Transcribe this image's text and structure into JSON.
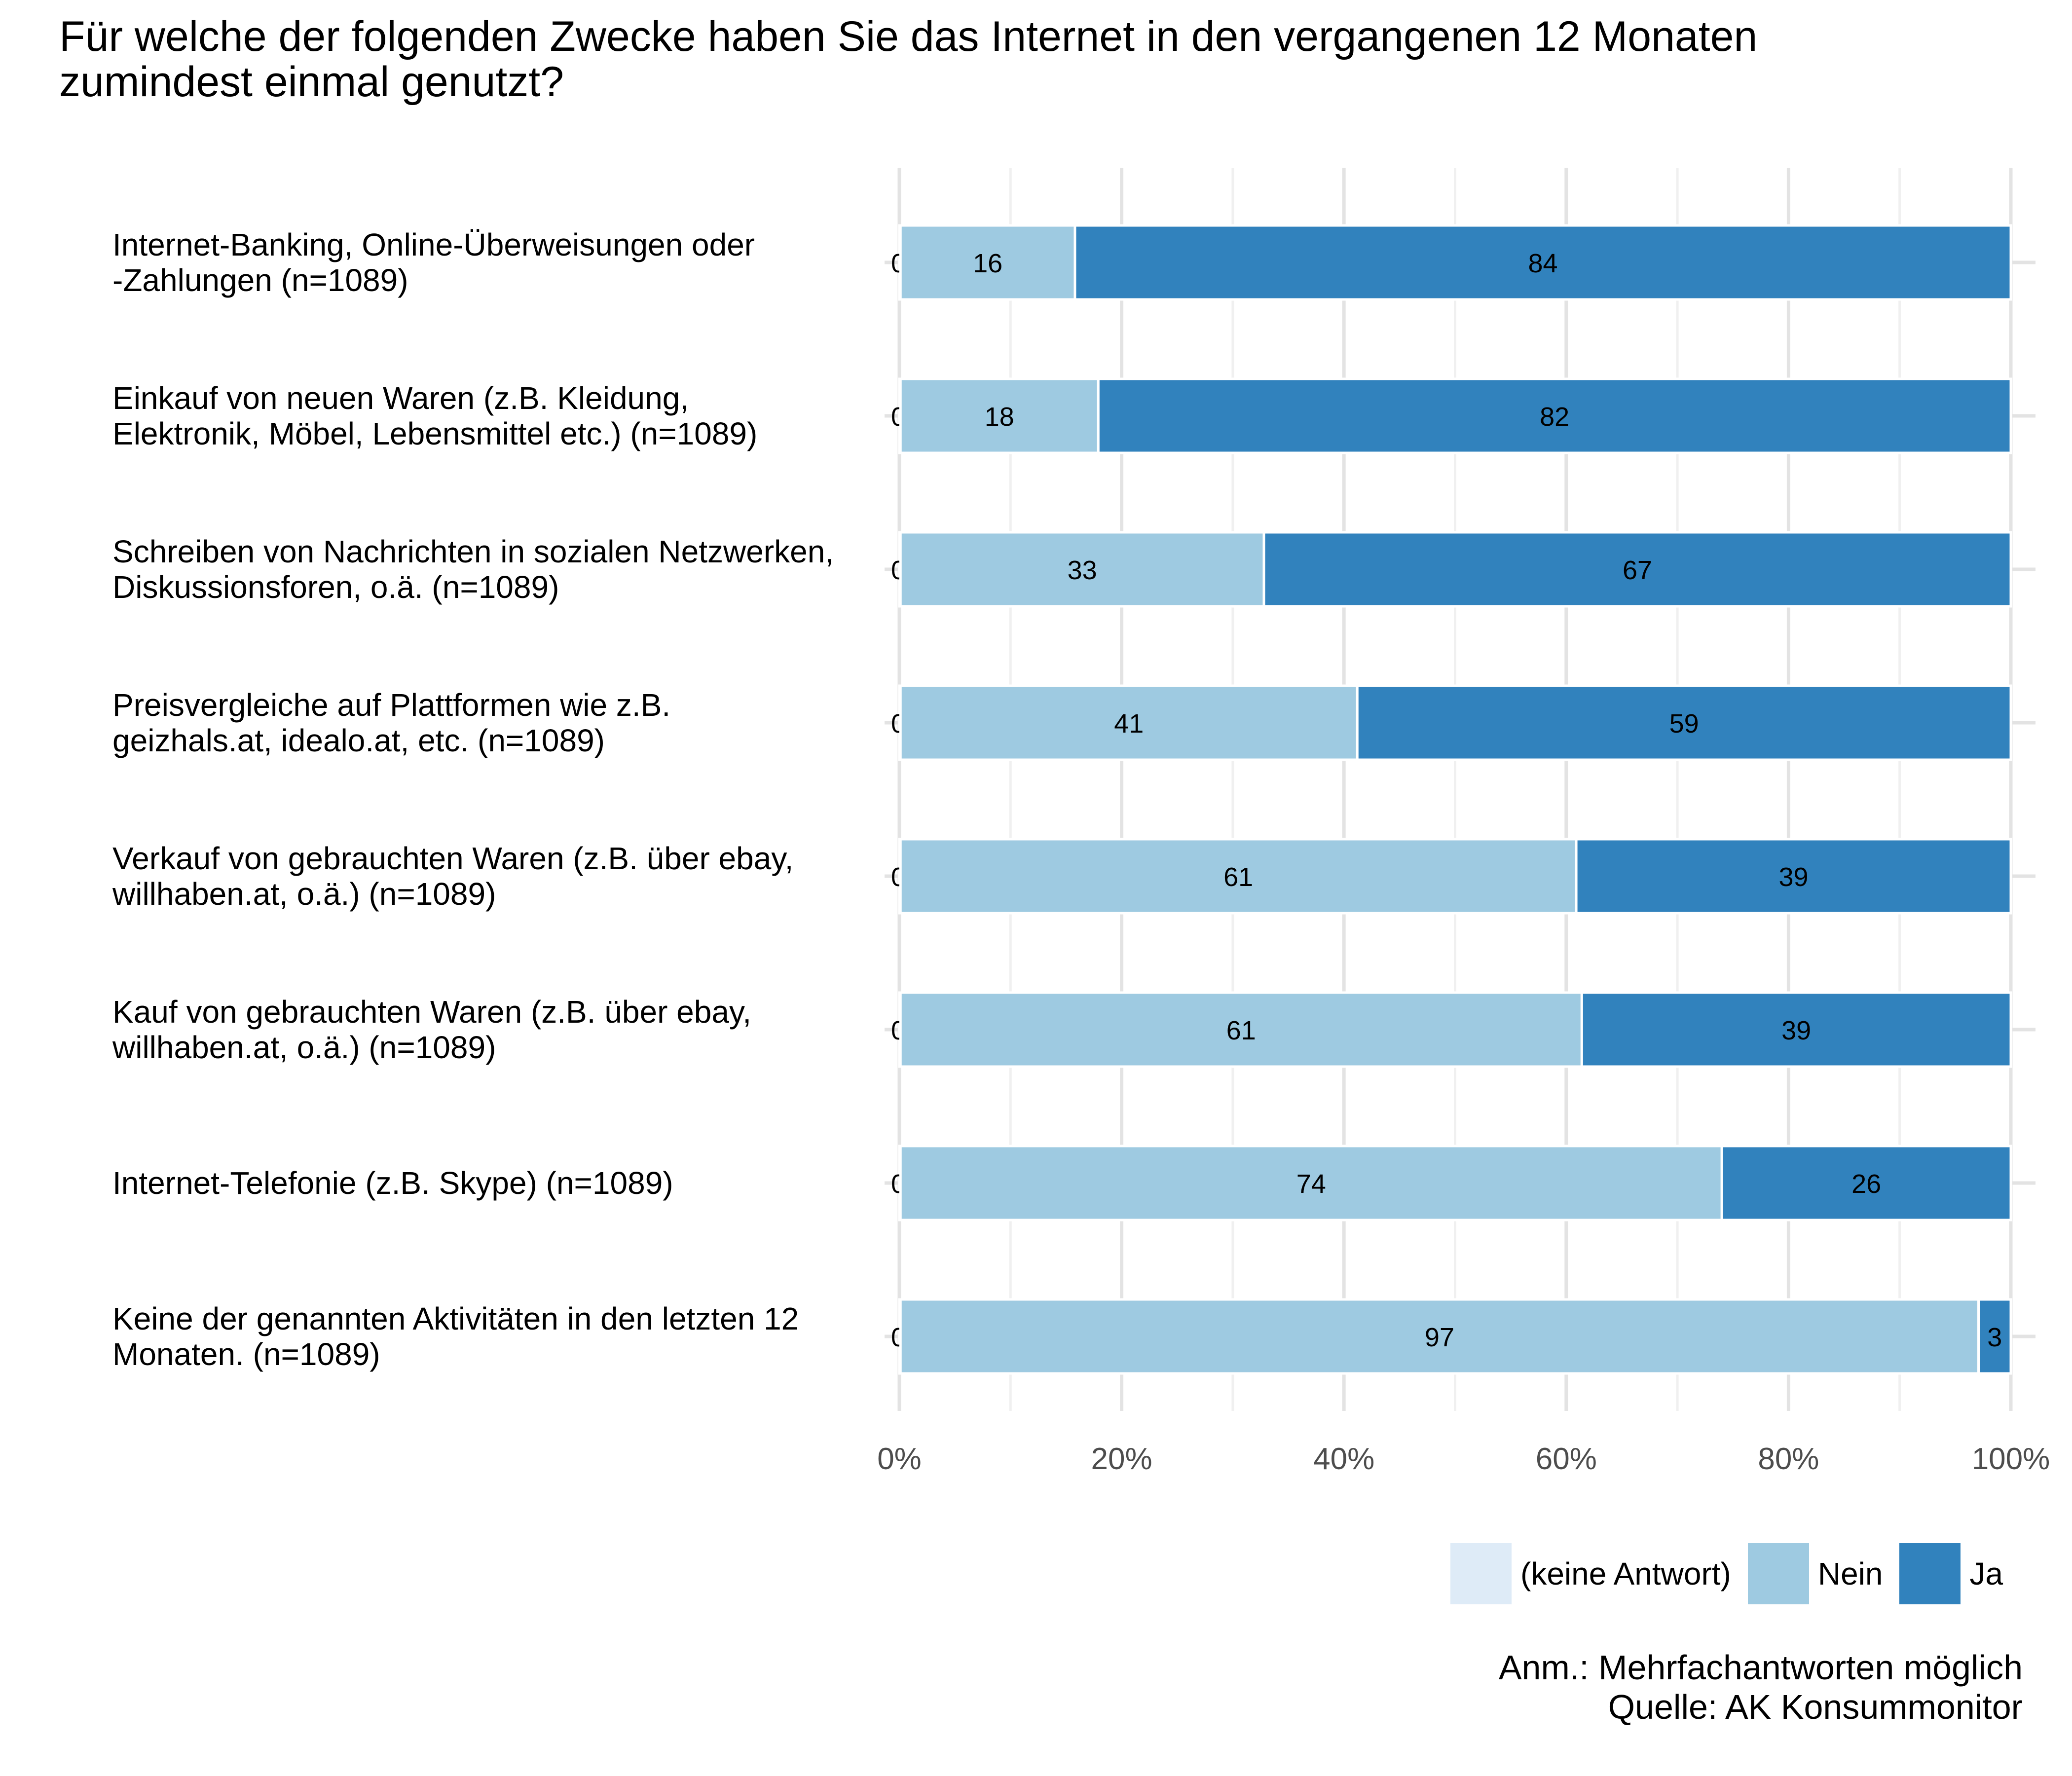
{
  "title_lines": [
    "Für welche der folgenden Zwecke haben Sie das Internet in den vergangenen 12 Monaten",
    "zumindest einmal genutzt?"
  ],
  "chart_data": {
    "type": "bar",
    "orientation": "horizontal",
    "stacked": true,
    "categories": [
      [
        "Internet-Banking, Online-Überweisungen oder",
        "-Zahlungen (n=1089)"
      ],
      [
        "Einkauf von neuen Waren (z.B. Kleidung,",
        "Elektronik, Möbel, Lebensmittel etc.) (n=1089)"
      ],
      [
        "Schreiben von Nachrichten in sozialen Netzwerken,",
        "Diskussionsforen, o.ä. (n=1089)"
      ],
      [
        "Preisvergleiche auf Plattformen wie z.B.",
        "geizhals.at, idealo.at, etc. (n=1089)"
      ],
      [
        "Verkauf von gebrauchten Waren (z.B. über ebay,",
        "willhaben.at, o.ä.)  (n=1089)"
      ],
      [
        "Kauf von gebrauchten Waren (z.B. über ebay,",
        "willhaben.at, o.ä.) (n=1089)"
      ],
      [
        "Internet-Telefonie (z.B. Skype) (n=1089)"
      ],
      [
        "Keine der genannten Aktivitäten in den letzten 12",
        "Monaten. (n=1089)"
      ]
    ],
    "series": [
      {
        "name": "(keine Antwort)",
        "color": "#deebf7",
        "values": [
          0,
          0,
          0,
          0,
          0,
          0,
          0,
          0
        ],
        "exact": [
          0.1,
          0.1,
          0.1,
          0.1,
          0.1,
          0.1,
          0.1,
          0.1
        ],
        "labels": [
          "0",
          "0",
          "0",
          "0",
          "0",
          "0",
          "0",
          "0"
        ]
      },
      {
        "name": "Nein",
        "color": "#9ecae1",
        "values": [
          16,
          18,
          33,
          41,
          61,
          61,
          74,
          97
        ],
        "exact": [
          15.7,
          17.8,
          32.7,
          41.1,
          60.8,
          61.3,
          73.9,
          97.0
        ],
        "labels": [
          "16",
          "18",
          "33",
          "41",
          "61",
          "61",
          "74",
          "97"
        ]
      },
      {
        "name": "Ja",
        "color": "#3182bd",
        "values": [
          84,
          82,
          67,
          59,
          39,
          39,
          26,
          3
        ],
        "exact": [
          84.2,
          82.1,
          67.2,
          58.8,
          39.1,
          38.6,
          26.0,
          2.9
        ],
        "labels": [
          "84",
          "82",
          "67",
          "59",
          "39",
          "39",
          "26",
          "3"
        ]
      }
    ],
    "xlim": [
      0,
      100
    ],
    "x_ticks": [
      0,
      20,
      40,
      60,
      80,
      100
    ],
    "x_tick_labels": [
      "0%",
      "20%",
      "40%",
      "60%",
      "80%",
      "100%"
    ],
    "grid": true,
    "legend_position": "bottom-right"
  },
  "note_lines": [
    "Anm.: Mehrfachantworten möglich",
    "Quelle: AK Konsummonitor"
  ]
}
